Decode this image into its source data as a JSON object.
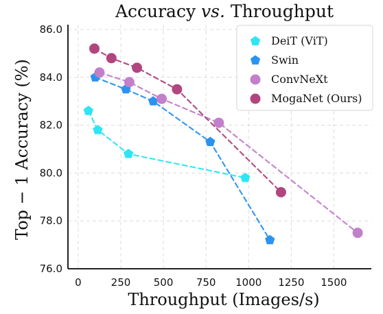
{
  "chart_data": {
    "type": "scatter",
    "title": "Accuracy vs. Throughput",
    "title_parts": [
      "Accuracy ",
      "vs.",
      " Throughput"
    ],
    "xlabel": "Throughput (Images/s)",
    "ylabel": "Top − 1 Accuracy (%)",
    "xlim": [
      -60,
      1720
    ],
    "ylim": [
      76.0,
      86.2
    ],
    "x_ticks": [
      0,
      250,
      500,
      750,
      1000,
      1250,
      1500
    ],
    "x_tick_labels": [
      "0",
      "250",
      "500",
      "750",
      "1000",
      "1250",
      "1500"
    ],
    "y_ticks": [
      76.0,
      78.0,
      80.0,
      82.0,
      84.0,
      86.0
    ],
    "y_tick_labels": [
      "76.0",
      "78.0",
      "80.0",
      "82.0",
      "84.0",
      "86.0"
    ],
    "grid": true,
    "legend_position": "top-right",
    "series": [
      {
        "name": "DeiT (ViT)",
        "color": "#2ee6f2",
        "marker": "pentagon",
        "points": [
          {
            "x": 60,
            "y": 82.6
          },
          {
            "x": 115,
            "y": 81.8
          },
          {
            "x": 295,
            "y": 80.8
          },
          {
            "x": 980,
            "y": 79.8
          }
        ]
      },
      {
        "name": "Swin",
        "color": "#2b93ef",
        "marker": "pentagon",
        "points": [
          {
            "x": 100,
            "y": 84.0
          },
          {
            "x": 280,
            "y": 83.5
          },
          {
            "x": 440,
            "y": 83.0
          },
          {
            "x": 775,
            "y": 81.3
          },
          {
            "x": 1125,
            "y": 77.2
          }
        ]
      },
      {
        "name": "ConvNeXt",
        "color": "#c27fca",
        "marker": "circle",
        "points": [
          {
            "x": 125,
            "y": 84.2
          },
          {
            "x": 300,
            "y": 83.8
          },
          {
            "x": 490,
            "y": 83.1
          },
          {
            "x": 825,
            "y": 82.1
          },
          {
            "x": 1640,
            "y": 77.5
          }
        ]
      },
      {
        "name": "MogaNet (Ours)",
        "color": "#b1467e",
        "marker": "circle",
        "points": [
          {
            "x": 95,
            "y": 85.2
          },
          {
            "x": 195,
            "y": 84.8
          },
          {
            "x": 345,
            "y": 84.4
          },
          {
            "x": 580,
            "y": 83.5
          },
          {
            "x": 1190,
            "y": 79.2
          }
        ]
      }
    ]
  }
}
